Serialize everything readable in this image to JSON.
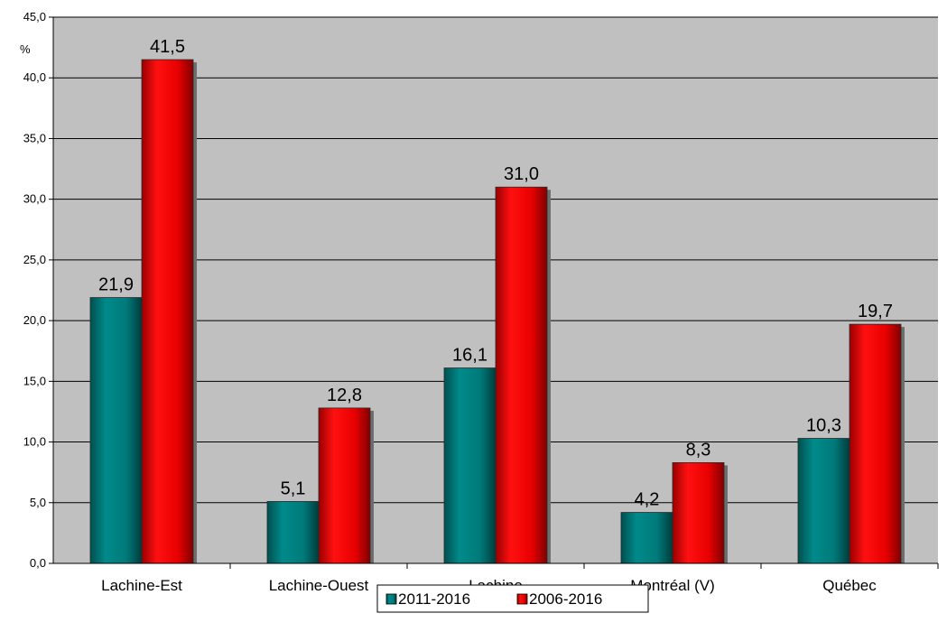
{
  "chart_data": {
    "type": "bar",
    "title": "",
    "xlabel": "",
    "ylabel": "%",
    "ylim": [
      0,
      45
    ],
    "ytick_step": 5,
    "ytick_labels": [
      "0,0",
      "5,0",
      "10,0",
      "15,0",
      "20,0",
      "25,0",
      "30,0",
      "35,0",
      "40,0",
      "45,0"
    ],
    "grid": true,
    "legend_position": "bottom",
    "plot_background": "#c0c0c0",
    "categories": [
      "Lachine-Est",
      "Lachine-Ouest",
      "Lachine",
      "Montréal (V)",
      "Québec"
    ],
    "series": [
      {
        "name": "2011-2016",
        "color": "#008080",
        "values": [
          21.9,
          5.1,
          16.1,
          4.2,
          10.3
        ],
        "labels": [
          "21,9",
          "5,1",
          "16,1",
          "4,2",
          "10,3"
        ]
      },
      {
        "name": "2006-2016",
        "color": "#e00000",
        "values": [
          41.5,
          12.8,
          31.0,
          8.3,
          19.7
        ],
        "labels": [
          "41,5",
          "12,8",
          "31,0",
          "8,3",
          "19,7"
        ]
      }
    ]
  }
}
